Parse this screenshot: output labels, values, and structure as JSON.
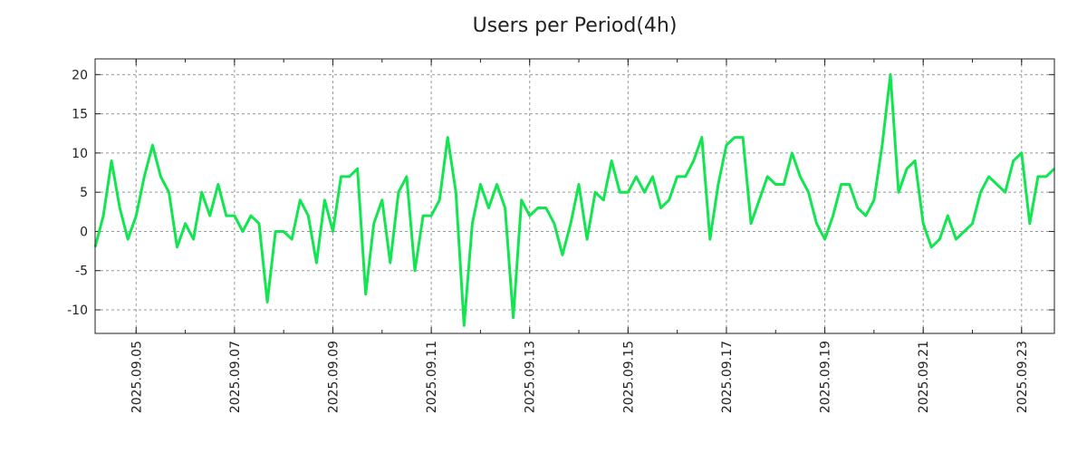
{
  "chart_data": {
    "type": "line",
    "title": "Users per Period(4h)",
    "xlabel": "",
    "ylabel": "",
    "start": "2025.09.04 04:00",
    "step_hours": 4,
    "x_tick_labels": [
      "2025.09.05",
      "2025.09.07",
      "2025.09.09",
      "2025.09.11",
      "2025.09.13",
      "2025.09.15",
      "2025.09.17",
      "2025.09.19",
      "2025.09.21",
      "2025.09.23"
    ],
    "y_ticks": [
      -10,
      -5,
      0,
      5,
      10,
      15,
      20
    ],
    "ylim": [
      -13,
      22
    ],
    "grid": true,
    "legend": "none",
    "series": [
      {
        "name": "Users",
        "color": "#11e650",
        "values": [
          -2,
          2,
          9,
          3,
          -1,
          2,
          7,
          11,
          7,
          5,
          -2,
          1,
          -1,
          5,
          2,
          6,
          2,
          2,
          0,
          2,
          1,
          -9,
          0,
          0,
          -1,
          4,
          2,
          -4,
          4,
          0,
          7,
          7,
          8,
          -8,
          1,
          4,
          -4,
          5,
          7,
          -5,
          2,
          2,
          4,
          12,
          5,
          -12,
          1,
          6,
          3,
          6,
          3,
          -11,
          4,
          2,
          3,
          3,
          1,
          -3,
          1,
          6,
          -1,
          5,
          4,
          9,
          5,
          5,
          7,
          5,
          7,
          3,
          4,
          7,
          7,
          9,
          12,
          -1,
          6,
          11,
          12,
          12,
          1,
          4,
          7,
          6,
          6,
          10,
          7,
          5,
          1,
          -1,
          2,
          6,
          6,
          3,
          2,
          4,
          11,
          20,
          5,
          8,
          9,
          1,
          -2,
          -1,
          2,
          -1,
          0,
          1,
          5,
          7,
          6,
          5,
          9,
          10,
          1,
          7,
          7,
          8
        ]
      }
    ]
  }
}
